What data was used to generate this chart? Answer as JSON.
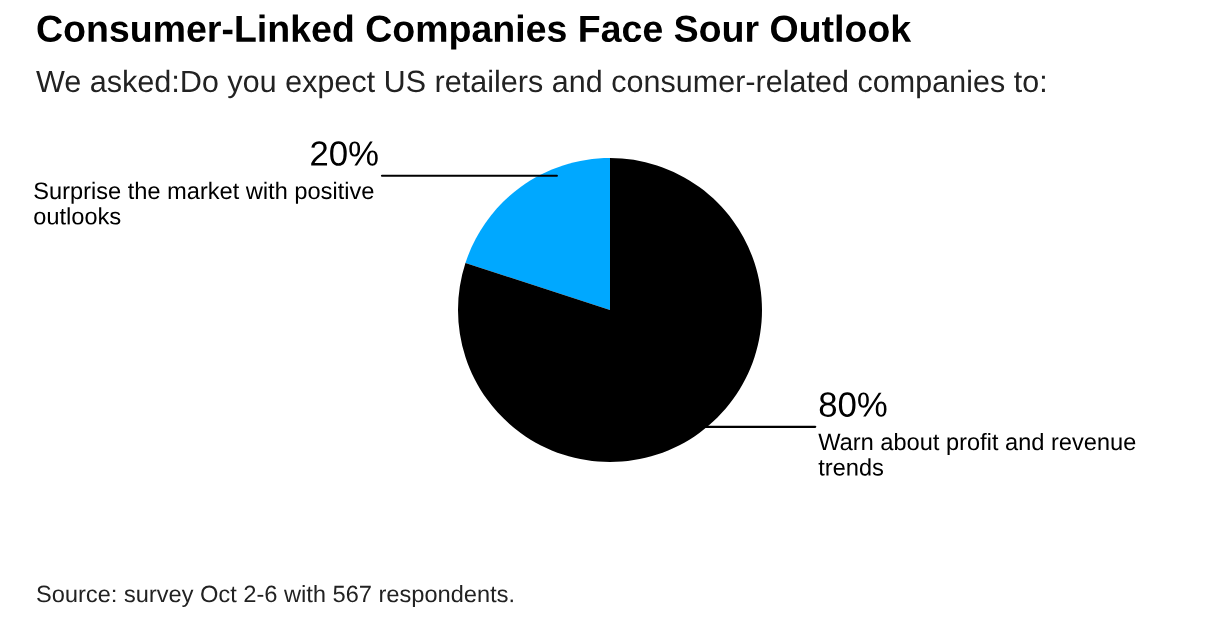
{
  "chart_data": {
    "type": "pie",
    "title": "Consumer-Linked Companies Face Sour Outlook",
    "subtitle": "We asked:Do you expect US retailers and consumer-related companies to:",
    "categories": [
      "Surprise the market with positive outlooks",
      "Warn about profit and revenue trends"
    ],
    "values": [
      20,
      80
    ],
    "colors": [
      "#00a8ff",
      "#000000"
    ],
    "value_labels": [
      "20%",
      "80%"
    ],
    "annotations": [
      "Source: survey Oct 2-6 with 567 respondents."
    ]
  }
}
